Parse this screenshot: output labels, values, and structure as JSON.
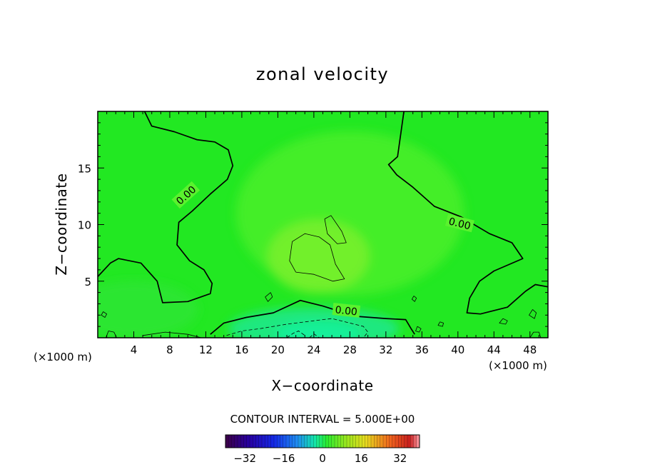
{
  "chart_data": {
    "type": "heatmap",
    "title": "zonal velocity",
    "xlabel": "X−coordinate",
    "ylabel": "Z−coordinate",
    "x_unit_left": "(×1000 m)",
    "x_unit_right": "(×1000 m)",
    "xlim": [
      0,
      50
    ],
    "ylim": [
      0,
      20
    ],
    "x_ticks": [
      {
        "value": 4,
        "label": "4"
      },
      {
        "value": 8,
        "label": "8"
      },
      {
        "value": 12,
        "label": "12"
      },
      {
        "value": 16,
        "label": "16"
      },
      {
        "value": 20,
        "label": "20"
      },
      {
        "value": 24,
        "label": "24"
      },
      {
        "value": 28,
        "label": "28"
      },
      {
        "value": 32,
        "label": "32"
      },
      {
        "value": 36,
        "label": "36"
      },
      {
        "value": 40,
        "label": "40"
      },
      {
        "value": 44,
        "label": "44"
      },
      {
        "value": 48,
        "label": "48"
      }
    ],
    "y_ticks": [
      {
        "value": 5,
        "label": "5"
      },
      {
        "value": 10,
        "label": "10"
      },
      {
        "value": 15,
        "label": "15"
      }
    ],
    "contour_interval_text": "CONTOUR INTERVAL = 5.000E+00",
    "contour_labels": [
      {
        "text": "0.00",
        "x": 9.8,
        "y": 12.6,
        "angle": -42
      },
      {
        "text": "0.00",
        "x": 40.2,
        "y": 10.1,
        "angle": 14
      },
      {
        "text": "0.00",
        "x": 27.6,
        "y": 2.4,
        "angle": 6
      }
    ],
    "zero_contours": [
      [
        [
          5.2,
          20
        ],
        [
          6,
          18.7
        ],
        [
          8.5,
          18.2
        ],
        [
          11,
          17.5
        ],
        [
          13,
          17.3
        ],
        [
          14.5,
          16.6
        ],
        [
          15,
          15.2
        ],
        [
          14.4,
          14.0
        ],
        [
          12.5,
          12.7
        ],
        [
          10.5,
          11.2
        ],
        [
          9,
          10.2
        ],
        [
          8.8,
          8.2
        ],
        [
          10.2,
          6.8
        ],
        [
          11.8,
          6.0
        ],
        [
          12.7,
          4.8
        ],
        [
          12.5,
          3.9
        ],
        [
          10,
          3.2
        ],
        [
          7.2,
          3.1
        ],
        [
          6.6,
          5.0
        ],
        [
          4.8,
          6.6
        ],
        [
          2.3,
          7.0
        ],
        [
          1.4,
          6.6
        ],
        [
          0,
          5.4
        ]
      ],
      [
        [
          34.0,
          20
        ],
        [
          33.3,
          16.0
        ],
        [
          32.3,
          15.3
        ],
        [
          33.2,
          14.4
        ],
        [
          35.0,
          13.3
        ],
        [
          37.4,
          11.6
        ],
        [
          40.3,
          10.7
        ],
        [
          43.5,
          9.2
        ],
        [
          46,
          8.4
        ],
        [
          47.2,
          7.0
        ],
        [
          44,
          5.9
        ],
        [
          42.4,
          5.0
        ],
        [
          41.3,
          3.5
        ],
        [
          41.0,
          2.2
        ],
        [
          42.5,
          2.1
        ],
        [
          45.5,
          2.7
        ],
        [
          47.5,
          4.1
        ],
        [
          48.6,
          4.7
        ],
        [
          50,
          4.5
        ]
      ],
      [
        [
          12.5,
          0.3
        ],
        [
          14.0,
          1.3
        ],
        [
          16.5,
          1.8
        ],
        [
          19.5,
          2.2
        ],
        [
          22.5,
          3.3
        ],
        [
          25.0,
          2.8
        ],
        [
          28.6,
          1.9
        ],
        [
          32.0,
          1.7
        ],
        [
          34.2,
          1.6
        ],
        [
          34.8,
          0.8
        ],
        [
          35.2,
          0.3
        ]
      ]
    ],
    "thin_contours": [
      [
        [
          22.0,
          5.8
        ],
        [
          21.3,
          6.8
        ],
        [
          21.6,
          8.5
        ],
        [
          23.0,
          9.2
        ],
        [
          24.6,
          8.9
        ],
        [
          25.8,
          8.2
        ],
        [
          26.4,
          6.5
        ],
        [
          27.4,
          5.2
        ],
        [
          26.1,
          5.0
        ],
        [
          24.0,
          5.6
        ],
        [
          22.0,
          5.8
        ]
      ],
      [
        [
          25.2,
          10.5
        ],
        [
          25.9,
          10.8
        ],
        [
          27.1,
          9.4
        ],
        [
          27.6,
          8.4
        ],
        [
          26.6,
          8.3
        ],
        [
          25.5,
          9.2
        ],
        [
          25.2,
          10.5
        ]
      ],
      [
        [
          19.2,
          4.0
        ],
        [
          18.6,
          3.6
        ],
        [
          18.9,
          3.2
        ],
        [
          19.4,
          3.6
        ],
        [
          19.2,
          4.0
        ]
      ],
      [
        [
          35.1,
          3.7
        ],
        [
          34.9,
          3.4
        ],
        [
          35.2,
          3.2
        ],
        [
          35.4,
          3.5
        ],
        [
          35.1,
          3.7
        ]
      ],
      [
        [
          35.5,
          1.0
        ],
        [
          35.3,
          0.6
        ],
        [
          35.7,
          0.5
        ],
        [
          35.9,
          0.8
        ],
        [
          35.5,
          1.0
        ]
      ],
      [
        [
          0.6,
          2.3
        ],
        [
          0.4,
          2.0
        ],
        [
          0.8,
          1.8
        ],
        [
          1.0,
          2.1
        ],
        [
          0.6,
          2.3
        ]
      ],
      [
        [
          48.3,
          2.5
        ],
        [
          47.9,
          2.0
        ],
        [
          48.5,
          1.7
        ],
        [
          48.7,
          2.2
        ],
        [
          48.3,
          2.5
        ]
      ],
      [
        [
          45.0,
          1.7
        ],
        [
          44.6,
          1.3
        ],
        [
          45.3,
          1.2
        ],
        [
          45.5,
          1.5
        ],
        [
          45.0,
          1.7
        ]
      ],
      [
        [
          38.0,
          1.4
        ],
        [
          37.8,
          1.1
        ],
        [
          38.3,
          1.0
        ],
        [
          38.4,
          1.3
        ],
        [
          38.0,
          1.4
        ]
      ],
      [
        [
          48.4,
          0.5
        ],
        [
          48.0,
          0.0
        ],
        [
          49.2,
          0.0
        ],
        [
          49.0,
          0.5
        ],
        [
          48.4,
          0.5
        ]
      ],
      [
        [
          5.0,
          0.2
        ],
        [
          7.5,
          0.5
        ],
        [
          10.0,
          0.3
        ],
        [
          11.5,
          0.0
        ]
      ],
      [
        [
          0.9,
          0.0
        ],
        [
          1.2,
          0.6
        ],
        [
          1.8,
          0.5
        ],
        [
          2.1,
          0.0
        ]
      ]
    ],
    "dashed_contours": [
      [
        [
          14.3,
          0.2
        ],
        [
          16.0,
          0.6
        ],
        [
          18.0,
          0.8
        ],
        [
          21.0,
          1.2
        ],
        [
          24.0,
          1.5
        ],
        [
          26.0,
          1.7
        ],
        [
          28.0,
          1.3
        ],
        [
          29.5,
          1.0
        ],
        [
          30.0,
          0.5
        ],
        [
          29.5,
          0.0
        ]
      ],
      [
        [
          21.0,
          0.0
        ],
        [
          21.7,
          0.4
        ],
        [
          22.3,
          0.6
        ],
        [
          23.0,
          0.2
        ]
      ],
      [
        [
          23.5,
          0.0
        ],
        [
          24.0,
          0.35
        ],
        [
          24.6,
          0.0
        ]
      ]
    ],
    "colorbar": {
      "vmin": -40,
      "vmax": 40,
      "ticks": [
        {
          "value": -32,
          "label": "−32"
        },
        {
          "value": -16,
          "label": "−16"
        },
        {
          "value": 0,
          "label": "0"
        },
        {
          "value": 16,
          "label": "16"
        },
        {
          "value": 32,
          "label": "32"
        }
      ]
    },
    "colors": {
      "field_base": "#22e822",
      "field_light": "#5af22e",
      "field_core": "#7ff02a",
      "field_cyan": "#1ee88a",
      "field_deep": "#14f09a"
    }
  }
}
